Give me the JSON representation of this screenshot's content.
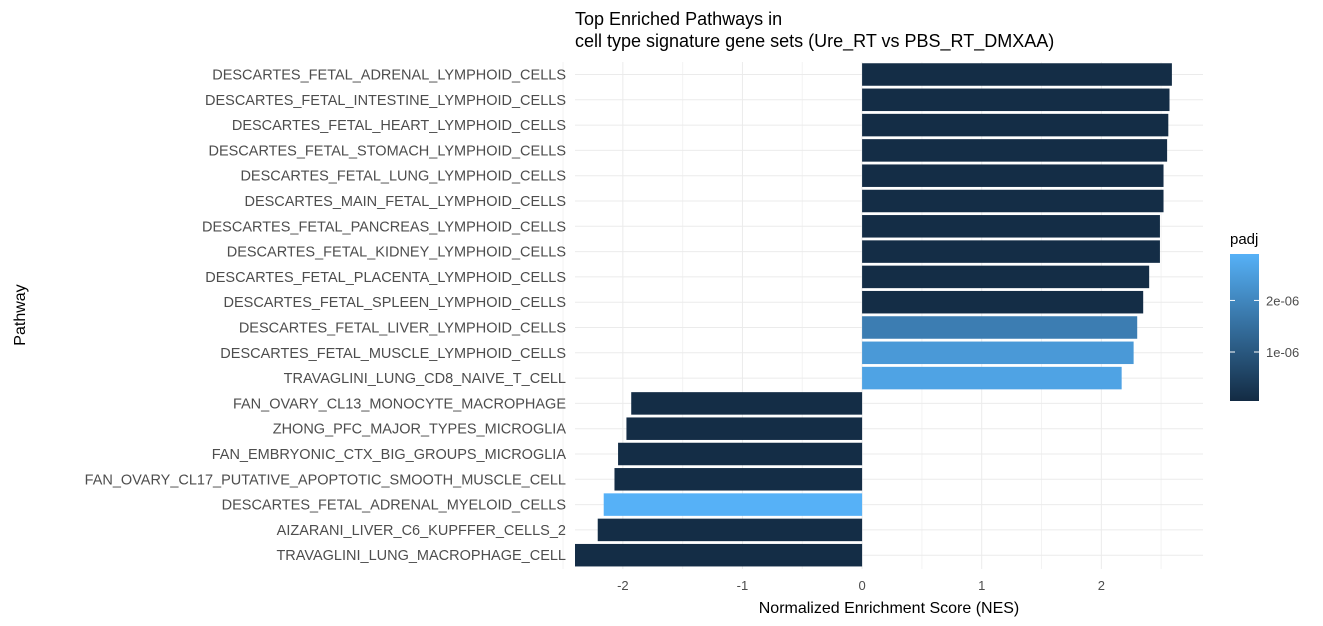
{
  "chart_data": {
    "type": "bar",
    "orientation": "horizontal",
    "title_lines": [
      "Top Enriched Pathways in",
      "cell type signature gene sets (Ure_RT vs PBS_RT_DMXAA)"
    ],
    "xlabel": "Normalized Enrichment Score (NES)",
    "ylabel": "Pathway",
    "xlim": [
      -2.4,
      2.85
    ],
    "x_ticks": [
      -2,
      -1,
      0,
      1,
      2
    ],
    "x_tick_labels": [
      "-2",
      "-1",
      "0",
      "1",
      "2"
    ],
    "grid": true,
    "legend": {
      "title": "padj",
      "placement": "right",
      "range": [
        5e-08,
        2.9e-06
      ],
      "ticks": [
        1e-06,
        2e-06
      ],
      "tick_labels": [
        "1e-06",
        "2e-06"
      ],
      "color_low": "#132b43",
      "color_high": "#56b1f7"
    },
    "categories": [
      "DESCARTES_FETAL_ADRENAL_LYMPHOID_CELLS",
      "DESCARTES_FETAL_INTESTINE_LYMPHOID_CELLS",
      "DESCARTES_FETAL_HEART_LYMPHOID_CELLS",
      "DESCARTES_FETAL_STOMACH_LYMPHOID_CELLS",
      "DESCARTES_FETAL_LUNG_LYMPHOID_CELLS",
      "DESCARTES_MAIN_FETAL_LYMPHOID_CELLS",
      "DESCARTES_FETAL_PANCREAS_LYMPHOID_CELLS",
      "DESCARTES_FETAL_KIDNEY_LYMPHOID_CELLS",
      "DESCARTES_FETAL_PLACENTA_LYMPHOID_CELLS",
      "DESCARTES_FETAL_SPLEEN_LYMPHOID_CELLS",
      "DESCARTES_FETAL_LIVER_LYMPHOID_CELLS",
      "DESCARTES_FETAL_MUSCLE_LYMPHOID_CELLS",
      "TRAVAGLINI_LUNG_CD8_NAIVE_T_CELL",
      "FAN_OVARY_CL13_MONOCYTE_MACROPHAGE",
      "ZHONG_PFC_MAJOR_TYPES_MICROGLIA",
      "FAN_EMBRYONIC_CTX_BIG_GROUPS_MICROGLIA",
      "FAN_OVARY_CL17_PUTATIVE_APOPTOTIC_SMOOTH_MUSCLE_CELL",
      "DESCARTES_FETAL_ADRENAL_MYELOID_CELLS",
      "AIZARANI_LIVER_C6_KUPFFER_CELLS_2",
      "TRAVAGLINI_LUNG_MACROPHAGE_CELL"
    ],
    "values": [
      2.59,
      2.57,
      2.56,
      2.55,
      2.52,
      2.52,
      2.49,
      2.49,
      2.4,
      2.35,
      2.3,
      2.27,
      2.17,
      -1.93,
      -1.97,
      -2.04,
      -2.07,
      -2.16,
      -2.21,
      -2.4
    ],
    "padj": [
      1e-07,
      1e-07,
      1e-07,
      1e-07,
      1e-07,
      1e-07,
      1e-07,
      1e-07,
      1e-07,
      1e-07,
      1.8e-06,
      2.4e-06,
      2.6e-06,
      1e-07,
      1e-07,
      1e-07,
      1e-07,
      2.9e-06,
      1e-07,
      1e-07
    ]
  }
}
